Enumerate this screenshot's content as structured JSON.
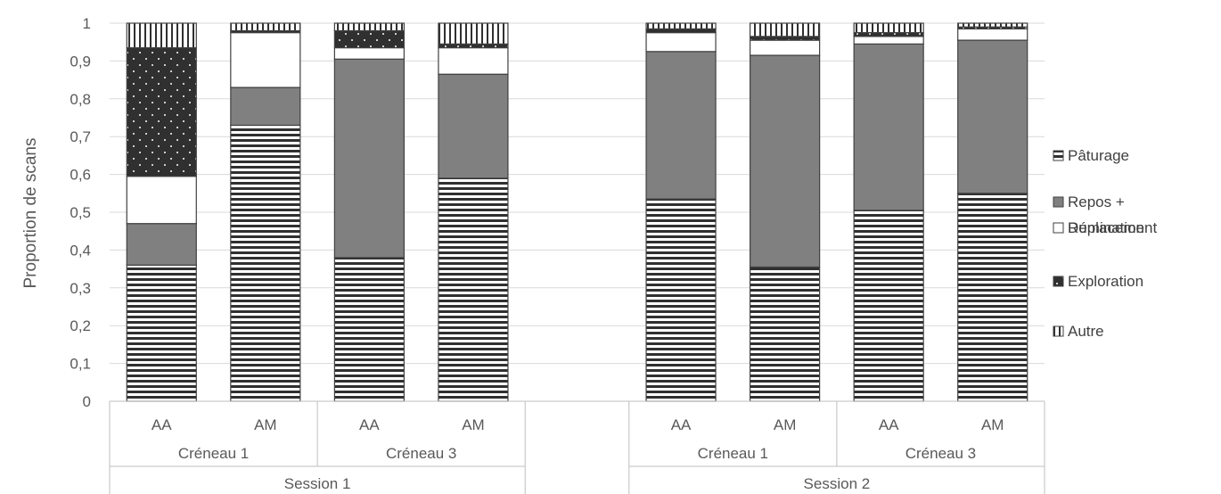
{
  "chart_data": {
    "type": "bar",
    "stacked": true,
    "ylabel": "Proportion de scans",
    "ylim": [
      0,
      1
    ],
    "yticks": [
      "0",
      "0,1",
      "0,2",
      "0,3",
      "0,4",
      "0,5",
      "0,6",
      "0,7",
      "0,8",
      "0,9",
      "1"
    ],
    "grid": true,
    "legend_position": "right",
    "sessions": [
      {
        "label": "Session 1",
        "slots": [
          {
            "label": "Créneau 1",
            "bars": [
              "AA",
              "AM"
            ]
          },
          {
            "label": "Créneau 3",
            "bars": [
              "AA",
              "AM"
            ]
          }
        ]
      },
      {
        "label": "Session 2",
        "slots": [
          {
            "label": "Créneau 1",
            "bars": [
              "AA",
              "AM"
            ]
          },
          {
            "label": "Créneau 3",
            "bars": [
              "AA",
              "AM"
            ]
          }
        ]
      }
    ],
    "categories": [
      "Session 1 / Créneau 1 / AA",
      "Session 1 / Créneau 1 / AM",
      "Session 1 / Créneau 3 / AA",
      "Session 1 / Créneau 3 / AM",
      "Session 2 / Créneau 1 / AA",
      "Session 2 / Créneau 1 / AM",
      "Session 2 / Créneau 3 / AA",
      "Session 2 / Créneau 3 / AM"
    ],
    "series": [
      {
        "name": "Pâturage",
        "pattern": "horizontal-stripes",
        "values": [
          0.36,
          0.73,
          0.38,
          0.59,
          0.535,
          0.355,
          0.505,
          0.55
        ]
      },
      {
        "name": "Repos + Rumination",
        "pattern": "solid-gray",
        "values": [
          0.11,
          0.1,
          0.525,
          0.275,
          0.39,
          0.56,
          0.44,
          0.405
        ]
      },
      {
        "name": "Déplacement",
        "pattern": "white",
        "values": [
          0.125,
          0.145,
          0.03,
          0.07,
          0.05,
          0.04,
          0.02,
          0.03
        ]
      },
      {
        "name": "Exploration",
        "pattern": "dark-dotted",
        "values": [
          0.34,
          0.005,
          0.045,
          0.01,
          0.01,
          0.01,
          0.01,
          0.005
        ]
      },
      {
        "name": "Autre",
        "pattern": "vertical-stripes",
        "values": [
          0.065,
          0.02,
          0.02,
          0.055,
          0.015,
          0.035,
          0.025,
          0.01
        ]
      }
    ],
    "colors": {
      "gray": "#808080",
      "dark": "#303030",
      "stripe": "#303030",
      "grid": "#d9d9d9",
      "axis": "#bfbfbf",
      "text": "#595959"
    }
  }
}
